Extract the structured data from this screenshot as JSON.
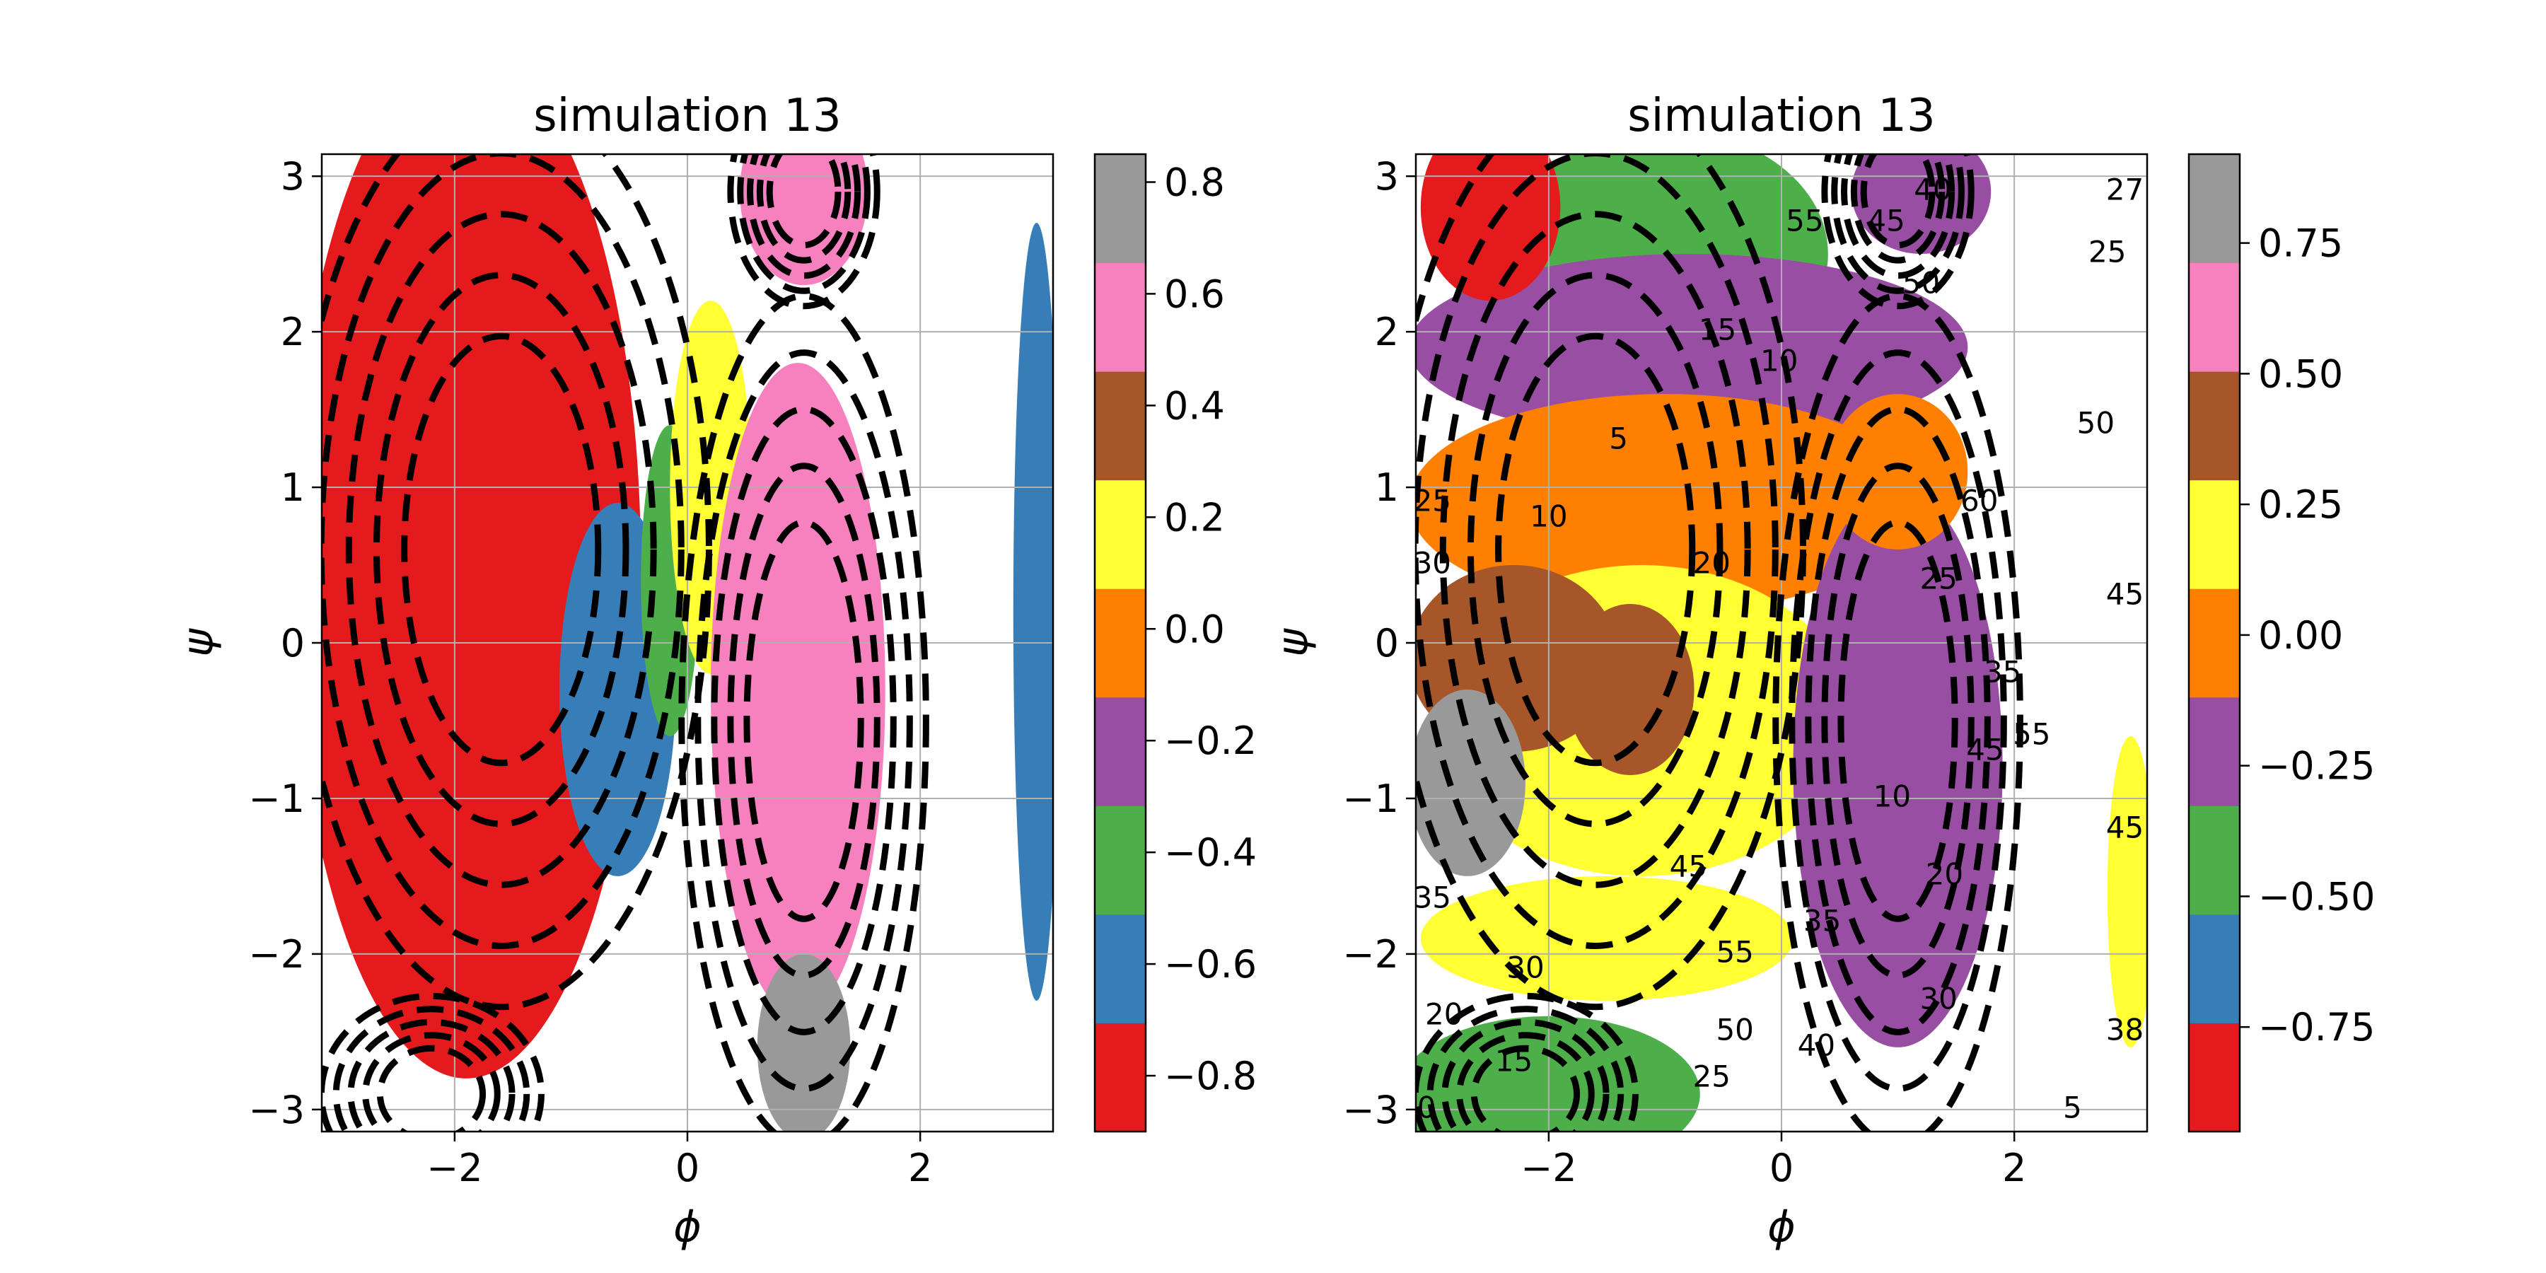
{
  "figure": {
    "background": "#ffffff"
  },
  "colormap": [
    "#e41a1c",
    "#377eb8",
    "#4daf4a",
    "#984ea3",
    "#ff7f00",
    "#ffff33",
    "#a65628",
    "#f781bf",
    "#999999"
  ],
  "chart_data": [
    {
      "type": "heatmap",
      "title": "simulation 13",
      "xlabel": "ϕ",
      "ylabel": "ψ",
      "xlim": [
        -3.14159,
        3.14159
      ],
      "ylim": [
        -3.14159,
        3.14159
      ],
      "xticks": [
        -2,
        0,
        2
      ],
      "xtick_labels": [
        "−2",
        "0",
        "2"
      ],
      "yticks": [
        -3,
        -2,
        -1,
        0,
        1,
        2,
        3
      ],
      "ytick_labels": [
        "−3",
        "−2",
        "−1",
        "0",
        "1",
        "2",
        "3"
      ],
      "grid": true,
      "colorbar": {
        "range": [
          -0.9,
          0.85
        ],
        "ticks": [
          -0.8,
          -0.6,
          -0.4,
          -0.2,
          0.0,
          0.2,
          0.4,
          0.6,
          0.8
        ],
        "tick_labels": [
          "−0.8",
          "−0.6",
          "−0.4",
          "−0.2",
          "0.0",
          "0.2",
          "0.4",
          "0.6",
          "0.8"
        ]
      },
      "regions": [
        {
          "value": -0.8,
          "cx": -1.9,
          "cy": 0.5,
          "rx": 1.5,
          "ry": 3.3
        },
        {
          "value": -0.6,
          "cx": -0.6,
          "cy": -0.3,
          "rx": 0.5,
          "ry": 1.2
        },
        {
          "value": -0.4,
          "cx": -0.15,
          "cy": 0.4,
          "rx": 0.25,
          "ry": 1.0
        },
        {
          "value": 0.2,
          "cx": 0.2,
          "cy": 1.0,
          "rx": 0.35,
          "ry": 1.2
        },
        {
          "value": 0.6,
          "cx": 0.95,
          "cy": -0.3,
          "rx": 0.75,
          "ry": 2.1
        },
        {
          "value": 0.6,
          "cx": 1.0,
          "cy": 2.9,
          "rx": 0.55,
          "ry": 0.6
        },
        {
          "value": 0.8,
          "cx": 1.0,
          "cy": -2.6,
          "rx": 0.4,
          "ry": 0.6
        },
        {
          "value": -0.6,
          "cx": 3.0,
          "cy": 0.2,
          "rx": 0.2,
          "ry": 2.5
        }
      ],
      "contour_labels": []
    },
    {
      "type": "heatmap",
      "title": "simulation 13",
      "xlabel": "ϕ",
      "ylabel": "ψ",
      "xlim": [
        -3.14159,
        3.14159
      ],
      "ylim": [
        -3.14159,
        3.14159
      ],
      "xticks": [
        -2,
        0,
        2
      ],
      "xtick_labels": [
        "−2",
        "0",
        "2"
      ],
      "yticks": [
        -3,
        -2,
        -1,
        0,
        1,
        2,
        3
      ],
      "ytick_labels": [
        "−3",
        "−2",
        "−1",
        "0",
        "1",
        "2",
        "3"
      ],
      "grid": true,
      "colorbar": {
        "range": [
          -0.95,
          0.92
        ],
        "ticks": [
          -0.75,
          -0.5,
          -0.25,
          0.0,
          0.25,
          0.5,
          0.75
        ],
        "tick_labels": [
          "−0.75",
          "−0.50",
          "−0.25",
          "0.00",
          "0.25",
          "0.50",
          "0.75"
        ]
      },
      "regions": [
        {
          "value": -0.5,
          "cx": -1.0,
          "cy": 2.5,
          "rx": 1.4,
          "ry": 0.8
        },
        {
          "value": -0.25,
          "cx": -0.8,
          "cy": 1.9,
          "rx": 2.4,
          "ry": 0.6
        },
        {
          "value": -0.85,
          "cx": -2.5,
          "cy": 2.8,
          "rx": 0.6,
          "ry": 0.6
        },
        {
          "value": 0.0,
          "cx": -1.0,
          "cy": 0.9,
          "rx": 2.2,
          "ry": 0.7
        },
        {
          "value": 0.25,
          "cx": -1.2,
          "cy": -0.5,
          "rx": 1.8,
          "ry": 1.0
        },
        {
          "value": 0.5,
          "cx": -2.3,
          "cy": -0.1,
          "rx": 0.9,
          "ry": 0.6
        },
        {
          "value": 0.4,
          "cx": -1.3,
          "cy": -0.3,
          "rx": 0.55,
          "ry": 0.55
        },
        {
          "value": 0.75,
          "cx": -2.7,
          "cy": -0.9,
          "rx": 0.5,
          "ry": 0.6
        },
        {
          "value": -0.25,
          "cx": 1.0,
          "cy": -0.8,
          "rx": 0.9,
          "ry": 1.8
        },
        {
          "value": 0.0,
          "cx": 1.0,
          "cy": 1.1,
          "rx": 0.6,
          "ry": 0.5
        },
        {
          "value": 0.25,
          "cx": -1.5,
          "cy": -1.9,
          "rx": 1.6,
          "ry": 0.4
        },
        {
          "value": -0.5,
          "cx": -2.0,
          "cy": -2.9,
          "rx": 1.3,
          "ry": 0.5
        },
        {
          "value": -0.25,
          "cx": 1.2,
          "cy": 2.9,
          "rx": 0.6,
          "ry": 0.4
        },
        {
          "value": 0.25,
          "cx": 3.0,
          "cy": -1.6,
          "rx": 0.2,
          "ry": 1.0
        }
      ],
      "contour_labels": [
        {
          "text": "55",
          "x": 0.2,
          "y": 2.7
        },
        {
          "text": "45",
          "x": 0.9,
          "y": 2.7
        },
        {
          "text": "40",
          "x": 1.3,
          "y": 2.9
        },
        {
          "text": "50",
          "x": 1.2,
          "y": 2.3
        },
        {
          "text": "15",
          "x": -0.55,
          "y": 2.0
        },
        {
          "text": "10",
          "x": -0.02,
          "y": 1.8
        },
        {
          "text": "5",
          "x": -1.4,
          "y": 1.3
        },
        {
          "text": "10",
          "x": -2.0,
          "y": 0.8
        },
        {
          "text": "20",
          "x": -0.6,
          "y": 0.5
        },
        {
          "text": "25",
          "x": -3.0,
          "y": 0.9
        },
        {
          "text": "30",
          "x": -3.0,
          "y": 0.5
        },
        {
          "text": "60",
          "x": 1.7,
          "y": 0.9
        },
        {
          "text": "25",
          "x": 1.35,
          "y": 0.4
        },
        {
          "text": "35",
          "x": 1.9,
          "y": -0.2
        },
        {
          "text": "45",
          "x": 1.75,
          "y": -0.7
        },
        {
          "text": "55",
          "x": 2.15,
          "y": -0.6
        },
        {
          "text": "10",
          "x": 0.95,
          "y": -1.0
        },
        {
          "text": "20",
          "x": 1.4,
          "y": -1.5
        },
        {
          "text": "45",
          "x": -0.8,
          "y": -1.45
        },
        {
          "text": "35",
          "x": -3.0,
          "y": -1.65
        },
        {
          "text": "30",
          "x": -2.2,
          "y": -2.1
        },
        {
          "text": "20",
          "x": -2.9,
          "y": -2.4
        },
        {
          "text": "35",
          "x": 0.35,
          "y": -1.8
        },
        {
          "text": "55",
          "x": -0.4,
          "y": -2.0
        },
        {
          "text": "50",
          "x": -0.4,
          "y": -2.5
        },
        {
          "text": "25",
          "x": -0.6,
          "y": -2.8
        },
        {
          "text": "15",
          "x": -2.3,
          "y": -2.7
        },
        {
          "text": "40",
          "x": 0.3,
          "y": -2.6
        },
        {
          "text": "30",
          "x": 1.35,
          "y": -2.3
        },
        {
          "text": "0",
          "x": -3.05,
          "y": -3.0
        },
        {
          "text": "27",
          "x": 2.95,
          "y": 2.9
        },
        {
          "text": "25",
          "x": 2.8,
          "y": 2.5
        },
        {
          "text": "50",
          "x": 2.7,
          "y": 1.4
        },
        {
          "text": "45",
          "x": 2.95,
          "y": 0.3
        },
        {
          "text": "45",
          "x": 2.95,
          "y": -1.2
        },
        {
          "text": "38",
          "x": 2.95,
          "y": -2.5
        },
        {
          "text": "5",
          "x": 2.5,
          "y": -3.0
        }
      ]
    }
  ]
}
